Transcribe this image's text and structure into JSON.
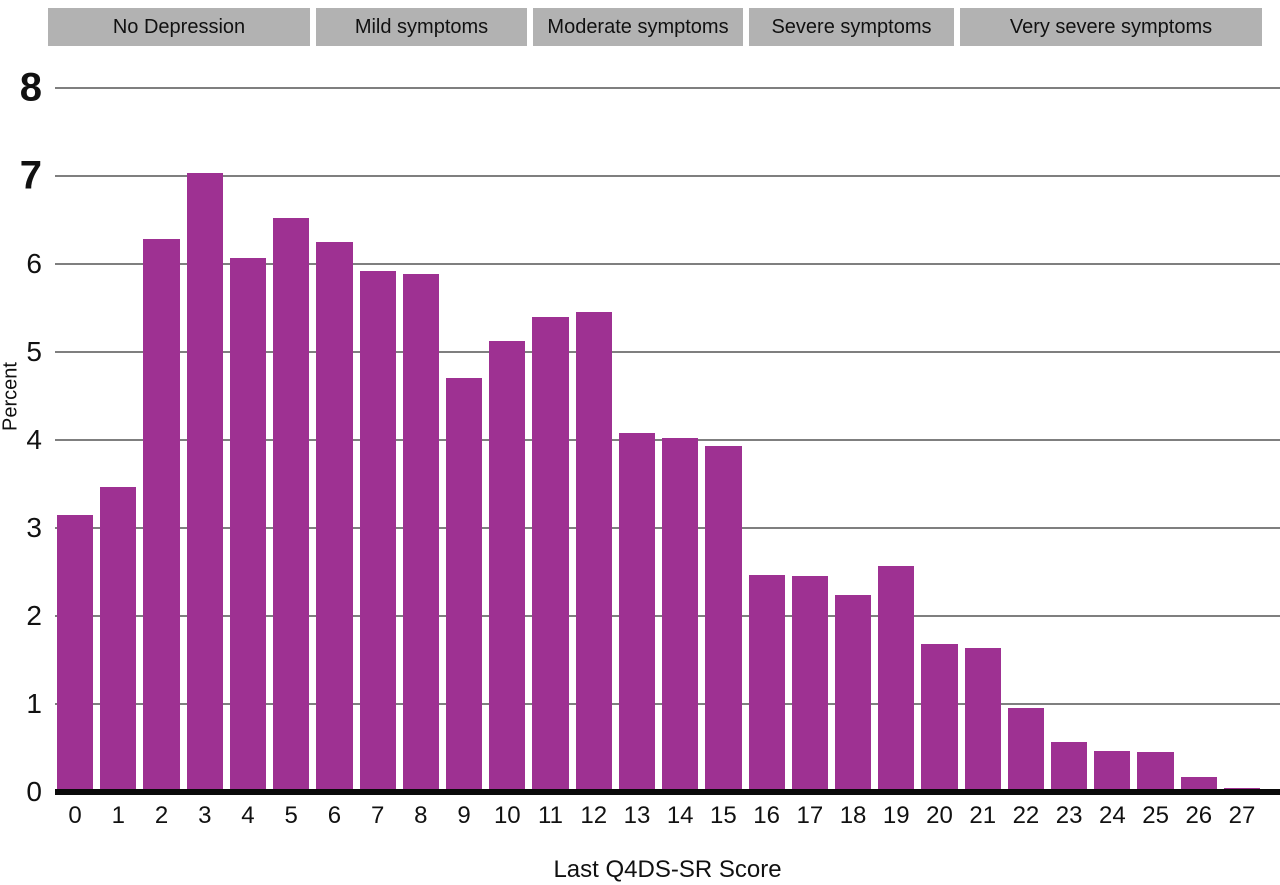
{
  "chart_data": {
    "type": "bar",
    "title": "",
    "xlabel": "Last Q4DS-SR Score",
    "ylabel": "Percent",
    "ylim": [
      0,
      8
    ],
    "yticks": [
      0,
      1,
      2,
      3,
      4,
      5,
      6,
      7,
      8
    ],
    "grid": "horizontal",
    "legend": "none",
    "bar_color": "#9e3192",
    "gridline_color": "#7f7f7f",
    "band_color": "#b2b2b2",
    "categories": [
      "0",
      "1",
      "2",
      "3",
      "4",
      "5",
      "6",
      "7",
      "8",
      "9",
      "10",
      "11",
      "12",
      "13",
      "14",
      "15",
      "16",
      "17",
      "18",
      "19",
      "20",
      "21",
      "22",
      "23",
      "24",
      "25",
      "26",
      "27"
    ],
    "values": [
      3.15,
      3.47,
      6.28,
      7.03,
      6.07,
      6.52,
      6.25,
      5.92,
      5.89,
      4.7,
      5.13,
      5.4,
      5.46,
      4.08,
      4.02,
      3.93,
      2.47,
      2.46,
      2.24,
      2.57,
      1.68,
      1.64,
      0.95,
      0.57,
      0.47,
      0.46,
      0.17,
      0.05
    ],
    "bands": [
      {
        "label": "No Depression",
        "score_range": [
          0,
          5
        ]
      },
      {
        "label": "Mild symptoms",
        "score_range": [
          6,
          10
        ]
      },
      {
        "label": "Moderate symptoms",
        "score_range": [
          11,
          15
        ]
      },
      {
        "label": "Severe symptoms",
        "score_range": [
          16,
          20
        ]
      },
      {
        "label": "Very severe symptoms",
        "score_range": [
          21,
          27
        ]
      }
    ]
  }
}
